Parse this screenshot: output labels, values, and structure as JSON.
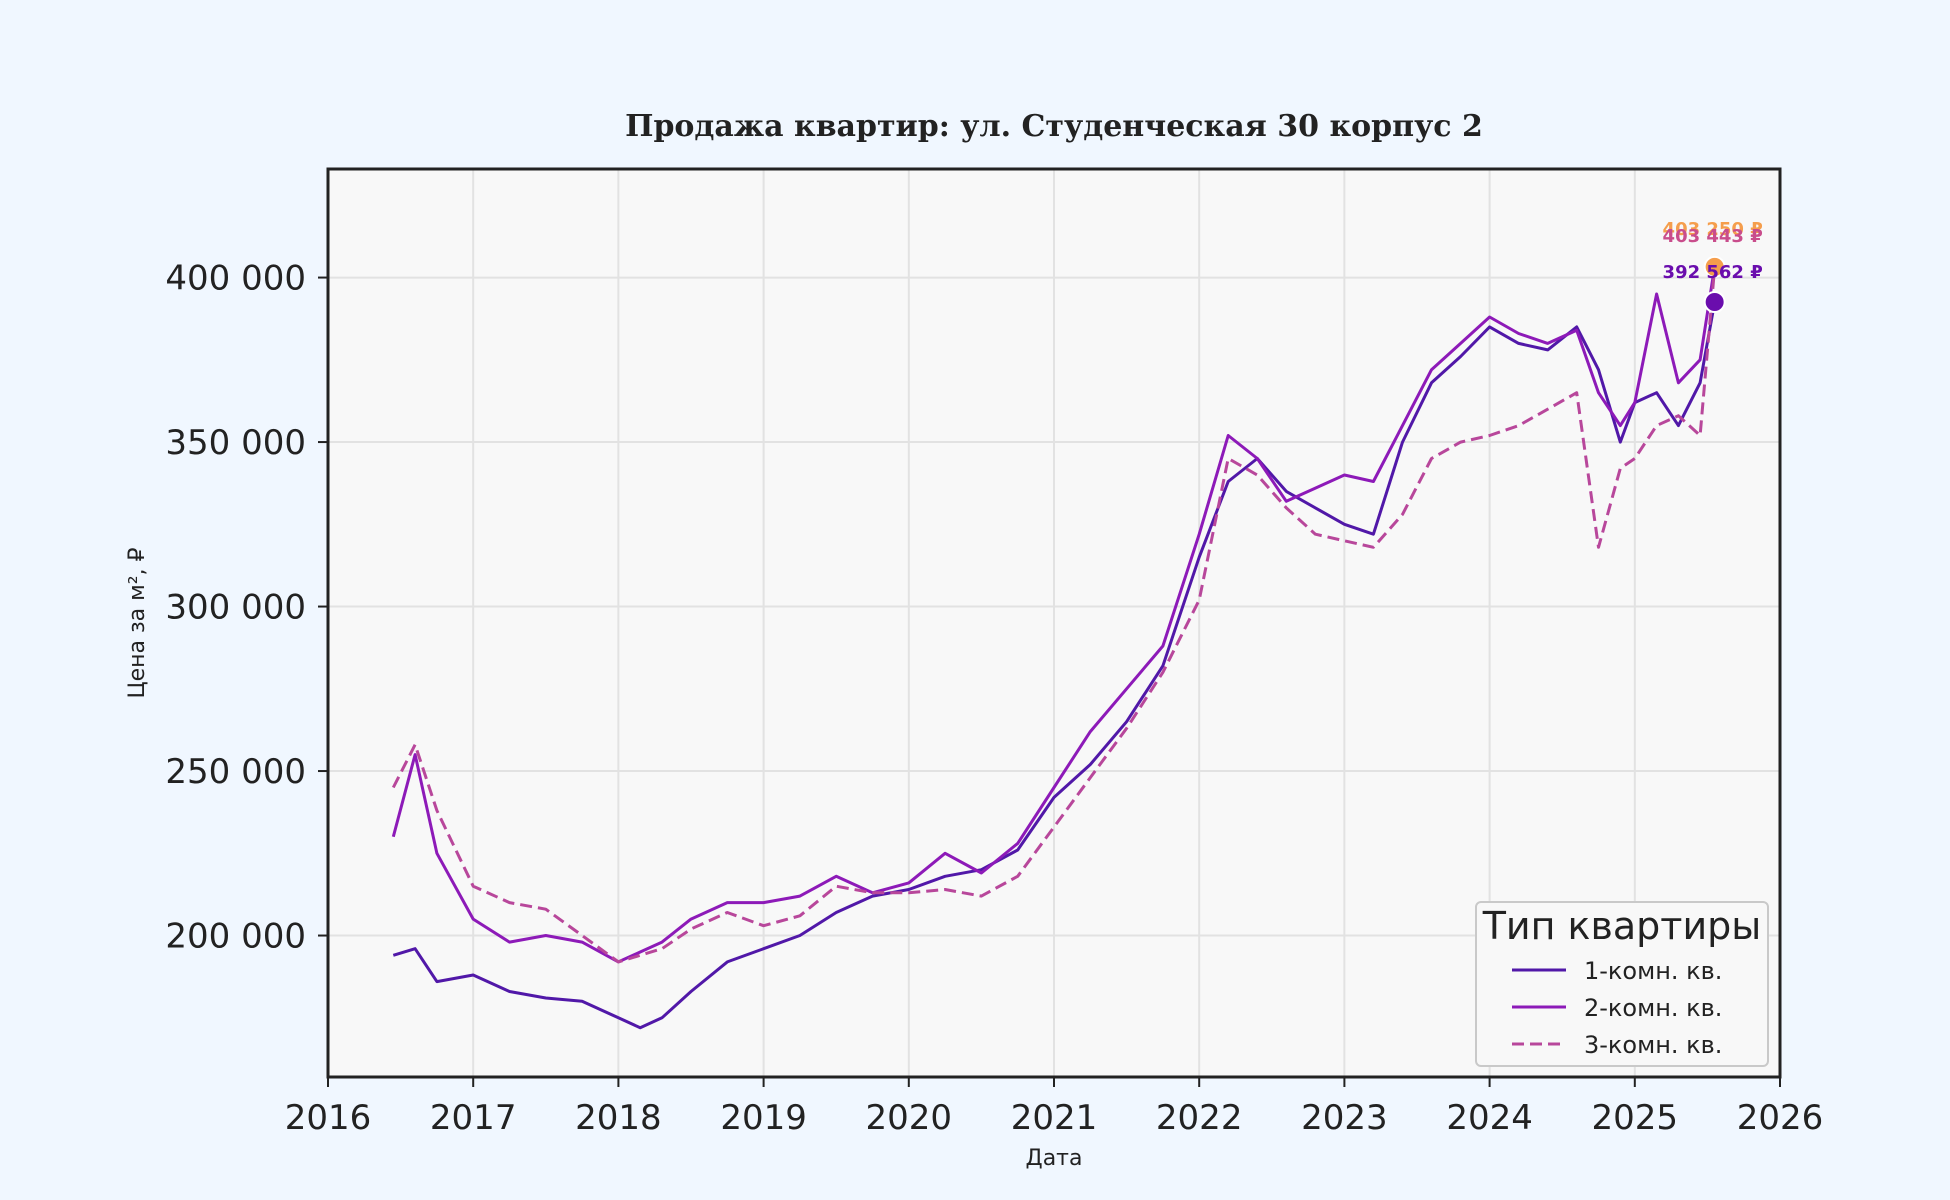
{
  "chart_data": {
    "type": "line",
    "title": "Продажа квартир: ул. Студенческая 30 корпус 2",
    "xlabel": "Дата",
    "ylabel": "Цена за м², ₽",
    "xlim": [
      2016,
      2026
    ],
    "ylim": [
      157000,
      433000
    ],
    "x_ticks": [
      "2016",
      "2017",
      "2018",
      "2019",
      "2020",
      "2021",
      "2022",
      "2023",
      "2024",
      "2025",
      "2026"
    ],
    "y_ticks": [
      {
        "value": 200000,
        "label": "200 000"
      },
      {
        "value": 250000,
        "label": "250 000"
      },
      {
        "value": 300000,
        "label": "300 000"
      },
      {
        "value": 350000,
        "label": "350 000"
      },
      {
        "value": 400000,
        "label": "400 000"
      }
    ],
    "grid": true,
    "legend": {
      "title": "Тип квартиры",
      "placement": "bottom-right"
    },
    "x": [
      2016.45,
      2016.6,
      2016.75,
      2017.0,
      2017.25,
      2017.5,
      2017.75,
      2018.0,
      2018.15,
      2018.3,
      2018.5,
      2018.75,
      2019.0,
      2019.25,
      2019.5,
      2019.75,
      2020.0,
      2020.25,
      2020.5,
      2020.75,
      2021.0,
      2021.25,
      2021.5,
      2021.75,
      2022.0,
      2022.2,
      2022.4,
      2022.6,
      2022.8,
      2023.0,
      2023.2,
      2023.4,
      2023.6,
      2023.8,
      2024.0,
      2024.2,
      2024.4,
      2024.6,
      2024.75,
      2024.9,
      2025.0,
      2025.15,
      2025.3,
      2025.45,
      2025.55
    ],
    "series": [
      {
        "name": "1-комн. кв.",
        "color": "#5118a8",
        "dash": false,
        "values": [
          194000,
          196000,
          186000,
          188000,
          183000,
          181000,
          180000,
          175000,
          172000,
          175000,
          183000,
          192000,
          196000,
          200000,
          207000,
          212000,
          214000,
          218000,
          220000,
          226000,
          242000,
          252000,
          265000,
          282000,
          315000,
          338000,
          345000,
          335000,
          330000,
          325000,
          322000,
          350000,
          368000,
          376000,
          385000,
          380000,
          378000,
          385000,
          372000,
          350000,
          362000,
          365000,
          355000,
          368000,
          392562
        ]
      },
      {
        "name": "2-комн. кв.",
        "color": "#8d1ab8",
        "dash": false,
        "values": [
          230000,
          255000,
          225000,
          205000,
          198000,
          200000,
          198000,
          192000,
          195000,
          198000,
          205000,
          210000,
          210000,
          212000,
          218000,
          213000,
          216000,
          225000,
          219000,
          228000,
          245000,
          262000,
          275000,
          288000,
          322000,
          352000,
          345000,
          332000,
          336000,
          340000,
          338000,
          355000,
          372000,
          380000,
          388000,
          383000,
          380000,
          384000,
          365000,
          355000,
          362000,
          395000,
          368000,
          375000,
          403443
        ]
      },
      {
        "name": "3-комн. кв.",
        "color": "#b8479b",
        "dash": true,
        "values": [
          245000,
          258000,
          238000,
          215000,
          210000,
          208000,
          200000,
          192000,
          194000,
          196000,
          202000,
          207000,
          203000,
          206000,
          215000,
          213000,
          213000,
          214000,
          212000,
          218000,
          233000,
          248000,
          263000,
          280000,
          302000,
          345000,
          340000,
          330000,
          322000,
          320000,
          318000,
          328000,
          345000,
          350000,
          352000,
          355000,
          360000,
          365000,
          318000,
          342000,
          345000,
          355000,
          358000,
          352000,
          403250
        ]
      }
    ],
    "annotations": [
      {
        "text": "403 250 ₽",
        "x": 2025.55,
        "y": 403250,
        "color": "#f59e4c",
        "marker": true
      },
      {
        "text": "403 443 ₽",
        "x": 2025.55,
        "y": 403443,
        "color": "#c94d8c",
        "marker": false
      },
      {
        "text": "392 562 ₽",
        "x": 2025.55,
        "y": 392562,
        "color": "#6a0dad",
        "marker": true
      }
    ]
  }
}
